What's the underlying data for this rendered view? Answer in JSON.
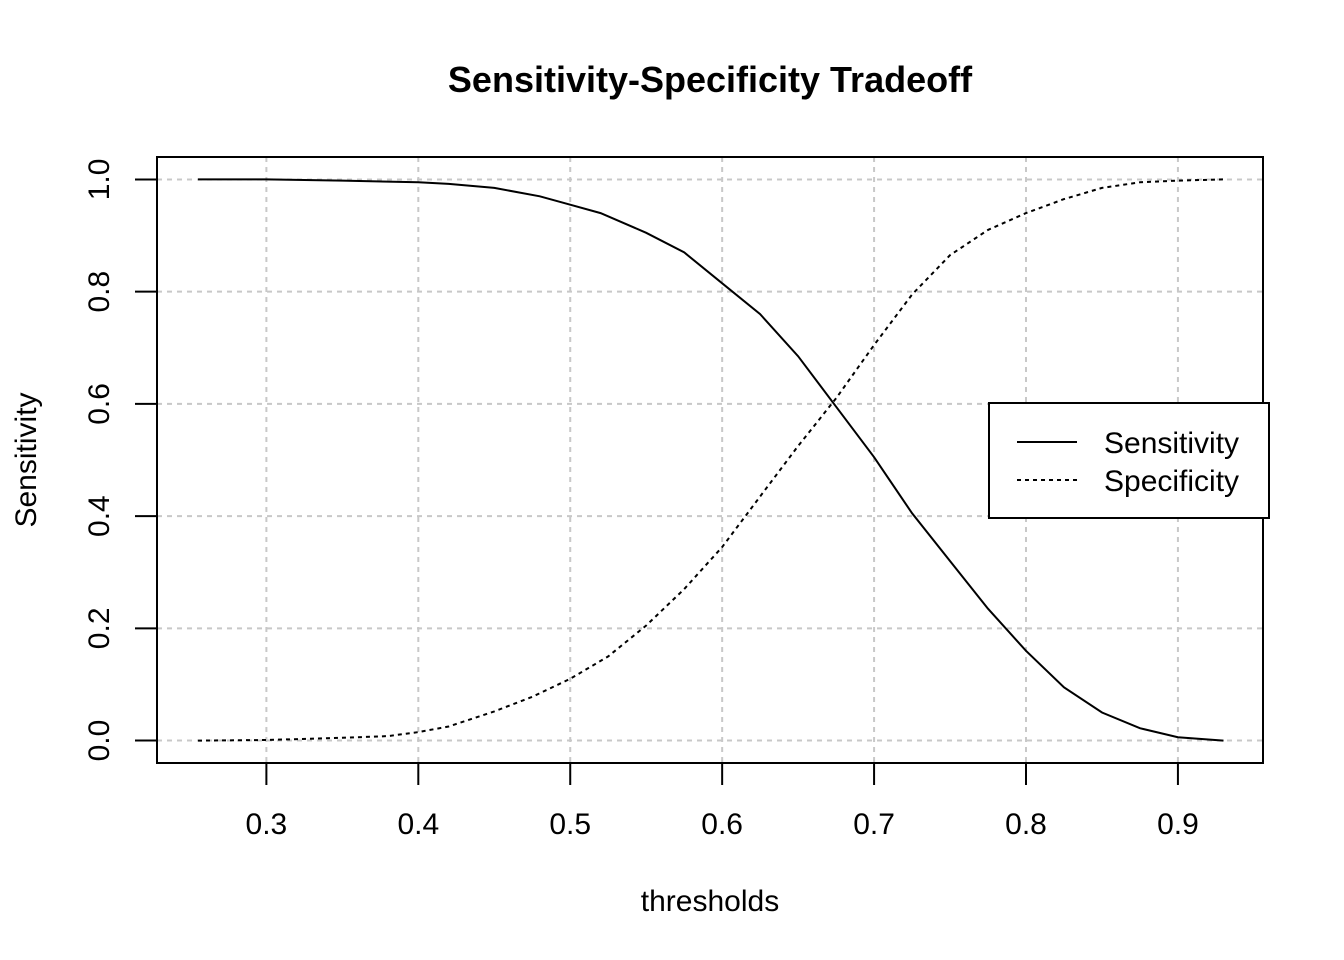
{
  "chart_data": {
    "type": "line",
    "title": "Sensitivity-Specificity Tradeoff",
    "xlabel": "thresholds",
    "ylabel": "Sensitivity",
    "xlim": [
      0.228,
      0.956
    ],
    "ylim": [
      -0.04,
      1.04
    ],
    "xticks": [
      "0.3",
      "0.4",
      "0.5",
      "0.6",
      "0.7",
      "0.8",
      "0.9"
    ],
    "yticks": [
      "0.0",
      "0.2",
      "0.4",
      "0.6",
      "0.8",
      "1.0"
    ],
    "grid": true,
    "legend": "right",
    "series": [
      {
        "name": "Sensitivity",
        "line_style": "solid",
        "x": [
          0.255,
          0.3,
          0.35,
          0.4,
          0.42,
          0.45,
          0.48,
          0.5,
          0.52,
          0.55,
          0.575,
          0.6,
          0.625,
          0.65,
          0.675,
          0.7,
          0.725,
          0.75,
          0.775,
          0.8,
          0.825,
          0.85,
          0.875,
          0.9,
          0.93
        ],
        "y": [
          1.0,
          1.0,
          0.998,
          0.995,
          0.992,
          0.985,
          0.97,
          0.955,
          0.94,
          0.905,
          0.87,
          0.815,
          0.76,
          0.685,
          0.595,
          0.505,
          0.405,
          0.32,
          0.235,
          0.16,
          0.095,
          0.05,
          0.022,
          0.006,
          0.0
        ]
      },
      {
        "name": "Specificity",
        "line_style": "dashed",
        "x": [
          0.255,
          0.3,
          0.35,
          0.38,
          0.4,
          0.42,
          0.45,
          0.475,
          0.5,
          0.525,
          0.55,
          0.575,
          0.6,
          0.625,
          0.65,
          0.675,
          0.7,
          0.725,
          0.75,
          0.775,
          0.8,
          0.825,
          0.85,
          0.875,
          0.9,
          0.93
        ],
        "y": [
          0.0,
          0.001,
          0.005,
          0.008,
          0.015,
          0.025,
          0.052,
          0.078,
          0.11,
          0.15,
          0.205,
          0.27,
          0.345,
          0.435,
          0.525,
          0.61,
          0.705,
          0.795,
          0.865,
          0.91,
          0.94,
          0.965,
          0.985,
          0.995,
          0.998,
          1.0
        ]
      }
    ]
  }
}
